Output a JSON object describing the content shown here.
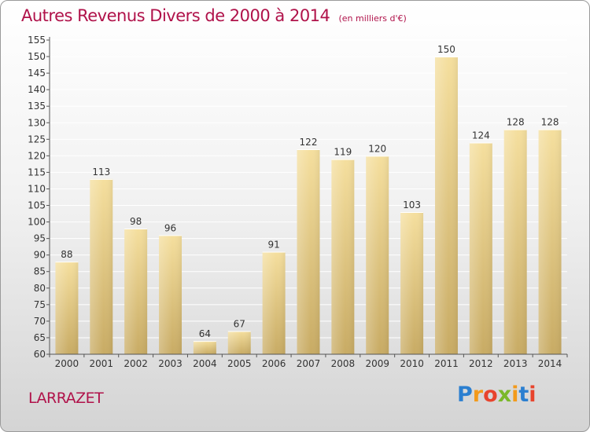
{
  "header": {
    "title": "Autres Revenus Divers de 2000 à 2014",
    "unit": "(en milliers d'€)"
  },
  "footer": {
    "city": "LARRAZET",
    "logo_letters": [
      "P",
      "r",
      "o",
      "x",
      "i",
      "t",
      "i"
    ],
    "logo_colors": [
      "#2b7fd0",
      "#f39a1b",
      "#e8442d",
      "#7ab829",
      "#f39a1b",
      "#2b7fd0",
      "#e8442d"
    ]
  },
  "chart_data": {
    "type": "bar",
    "title": "Autres Revenus Divers de 2000 à 2014",
    "subtitle": "(en milliers d'€)",
    "categories": [
      "2000",
      "2001",
      "2002",
      "2003",
      "2004",
      "2005",
      "2006",
      "2007",
      "2008",
      "2009",
      "2010",
      "2011",
      "2012",
      "2013",
      "2014"
    ],
    "values": [
      88,
      113,
      98,
      96,
      64,
      67,
      91,
      122,
      119,
      120,
      103,
      150,
      124,
      128,
      128
    ],
    "ylim": [
      60,
      155
    ],
    "yticks": [
      60,
      65,
      70,
      75,
      80,
      85,
      90,
      95,
      100,
      105,
      110,
      115,
      120,
      125,
      130,
      135,
      140,
      145,
      150,
      155
    ],
    "grid": true,
    "bar_color": "#e8cf86"
  }
}
